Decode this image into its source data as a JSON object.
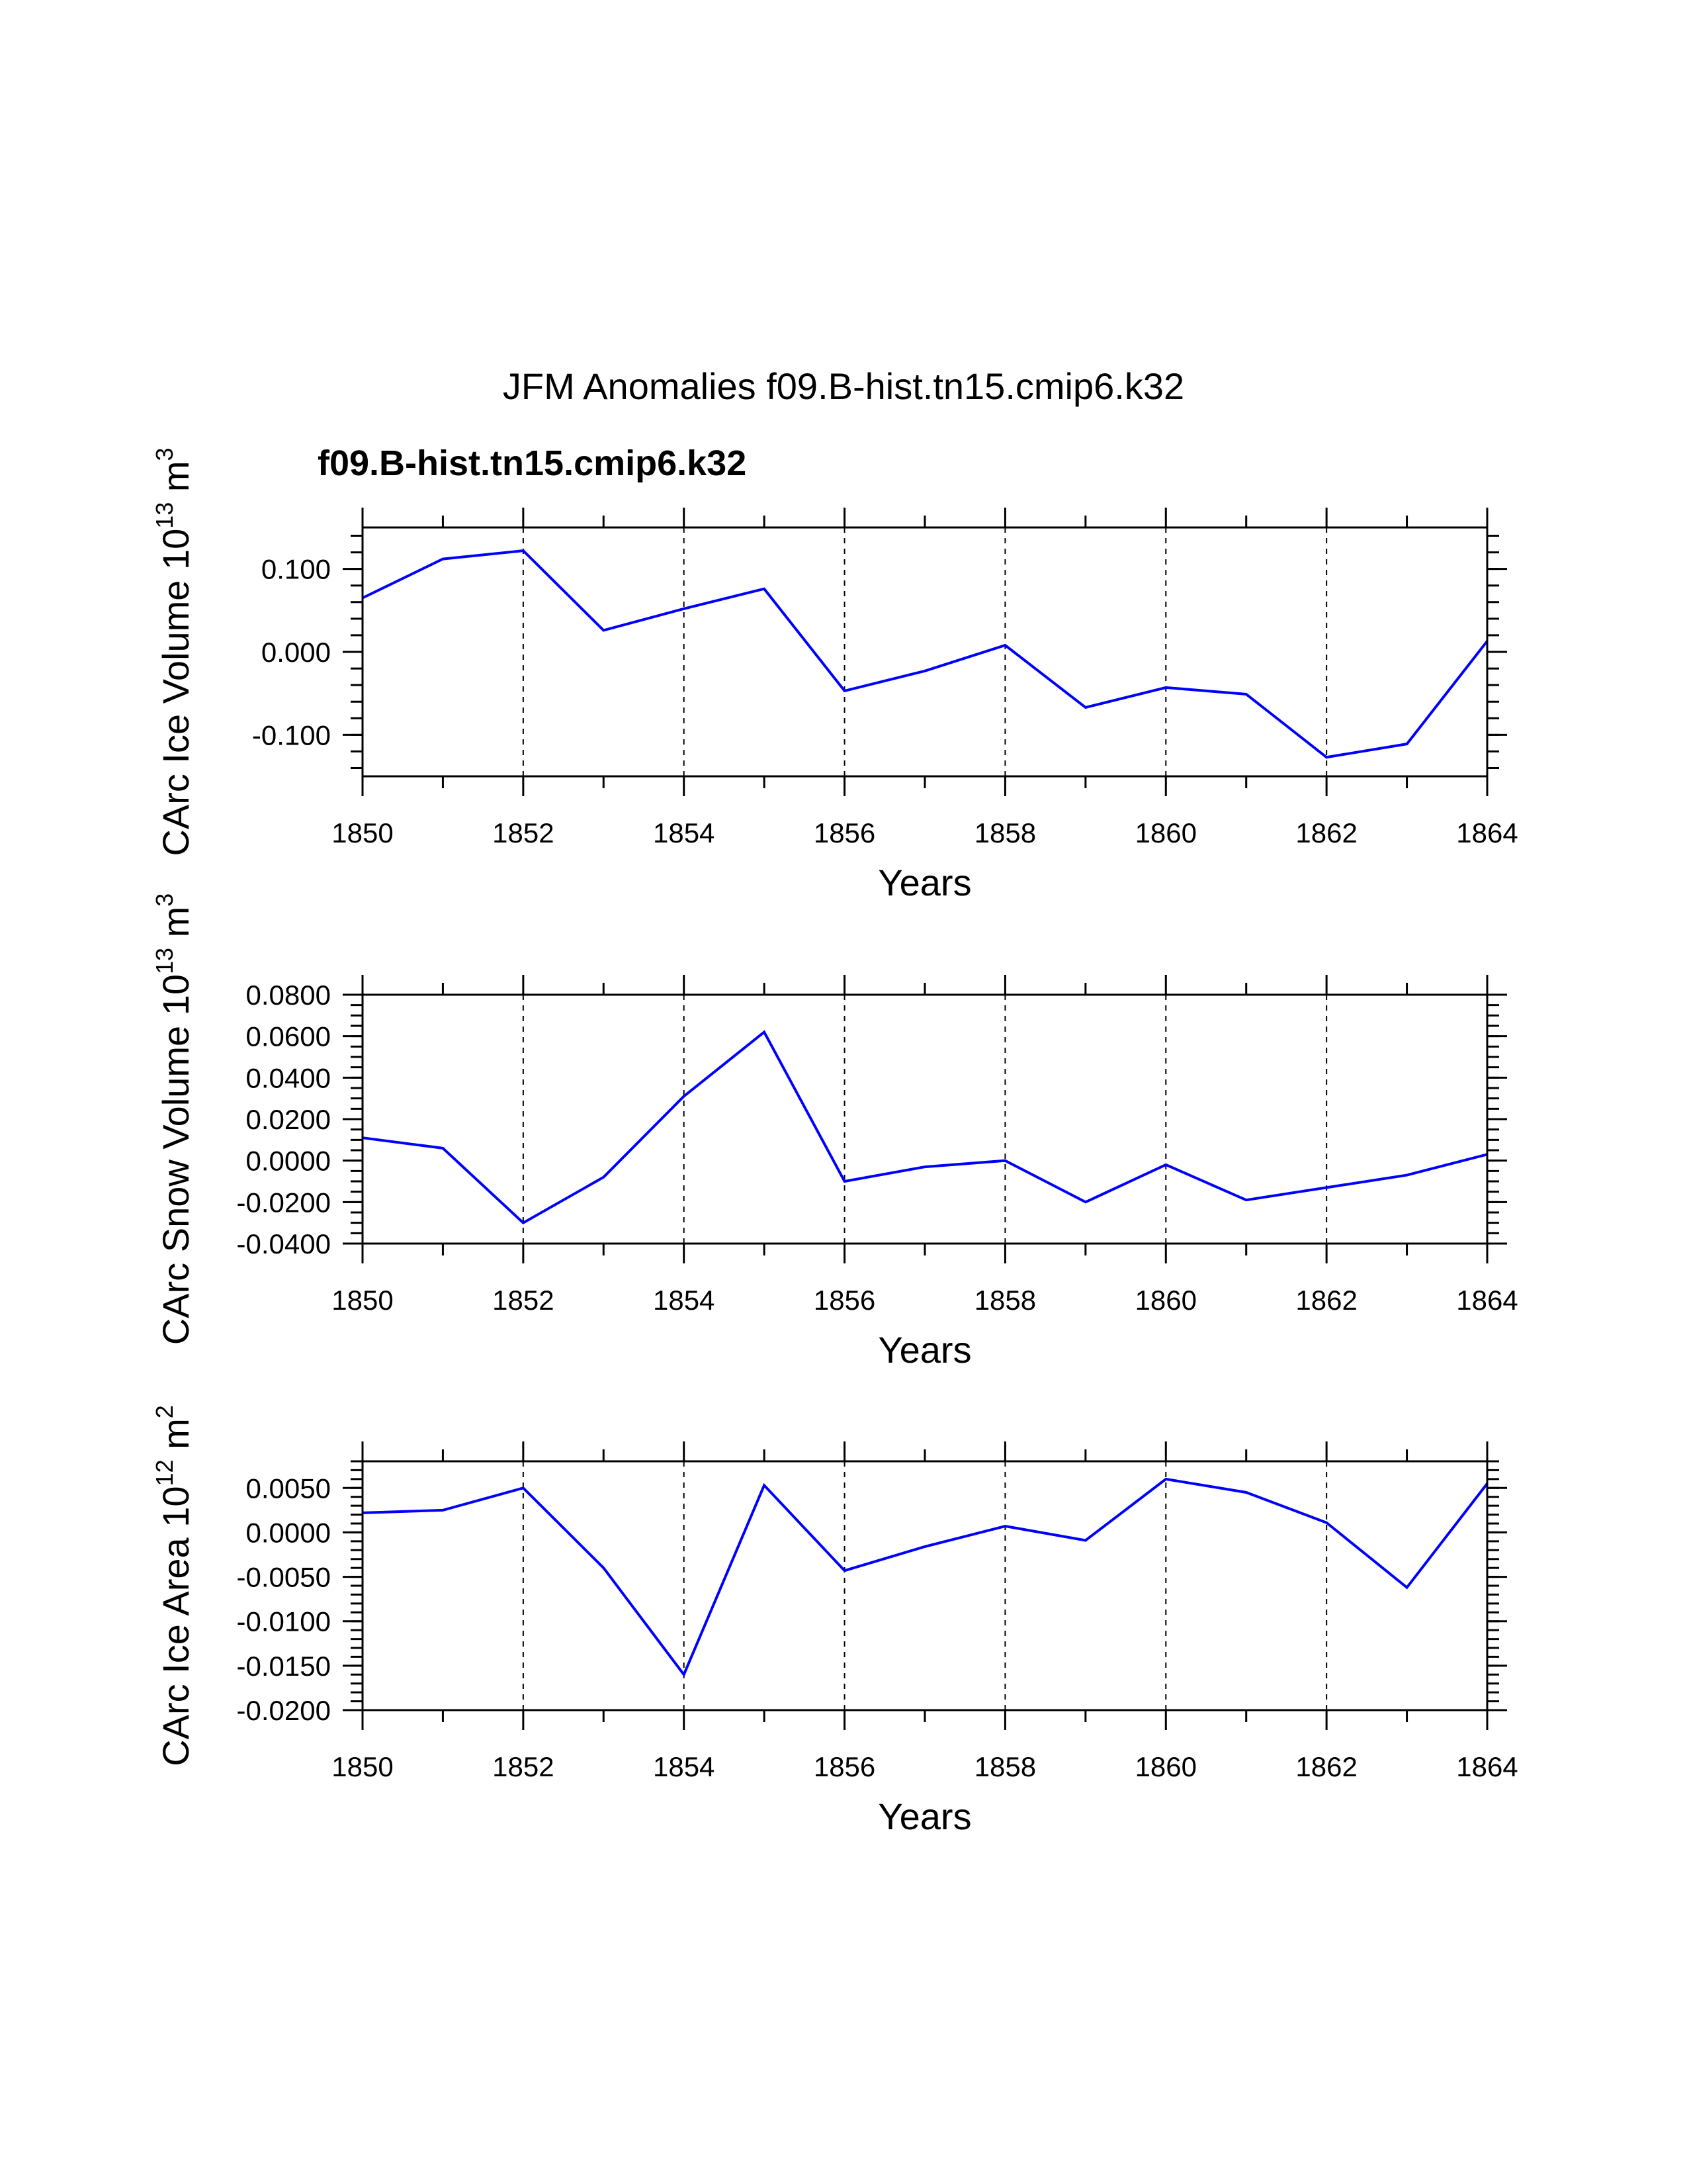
{
  "figure": {
    "main_title": "JFM Anomalies f09.B-hist.tn15.cmip6.k32",
    "case_label": "f09.B-hist.tn15.cmip6.k32",
    "case_color": "#0000ff",
    "line_color": "#0000ff",
    "grid_style": "dashed vertical lines at major x ticks"
  },
  "chart_data": [
    {
      "type": "line",
      "ylabel_main": "CArc Ice Volume 10",
      "ylabel_exp": "13",
      "ylabel_unit": " m",
      "ylabel_unit_exp": "3",
      "xlabel": "Years",
      "xlim": [
        1850,
        1864
      ],
      "ylim": [
        -0.15,
        0.15
      ],
      "xticks": [
        "1850",
        "1852",
        "1854",
        "1856",
        "1858",
        "1860",
        "1862",
        "1864"
      ],
      "ytick_values": [
        -0.1,
        0.0,
        0.1
      ],
      "yticks": [
        "-0.100",
        "0.000",
        "0.100"
      ],
      "y_minor_step": 0.02,
      "x": [
        1850,
        1851,
        1852,
        1853,
        1854,
        1855,
        1856,
        1857,
        1858,
        1859,
        1860,
        1861,
        1862,
        1863,
        1864
      ],
      "series": [
        {
          "name": "f09.B-hist.tn15.cmip6.k32",
          "values": [
            0.065,
            0.112,
            0.122,
            0.026,
            0.052,
            0.076,
            -0.047,
            -0.023,
            0.008,
            -0.067,
            -0.043,
            -0.051,
            -0.127,
            -0.111,
            0.013
          ]
        }
      ]
    },
    {
      "type": "line",
      "ylabel_main": "CArc Snow Volume 10",
      "ylabel_exp": "13",
      "ylabel_unit": " m",
      "ylabel_unit_exp": "3",
      "xlabel": "Years",
      "xlim": [
        1850,
        1864
      ],
      "ylim": [
        -0.04,
        0.08
      ],
      "xticks": [
        "1850",
        "1852",
        "1854",
        "1856",
        "1858",
        "1860",
        "1862",
        "1864"
      ],
      "ytick_values": [
        -0.04,
        -0.02,
        0.0,
        0.02,
        0.04,
        0.06,
        0.08
      ],
      "yticks": [
        "-0.0400",
        "-0.0200",
        "0.0000",
        "0.0200",
        "0.0400",
        "0.0600",
        "0.0800"
      ],
      "y_minor_step": 0.005,
      "x": [
        1850,
        1851,
        1852,
        1853,
        1854,
        1855,
        1856,
        1857,
        1858,
        1859,
        1860,
        1861,
        1862,
        1863,
        1864
      ],
      "series": [
        {
          "name": "f09.B-hist.tn15.cmip6.k32",
          "values": [
            0.011,
            0.006,
            -0.03,
            -0.008,
            0.031,
            0.062,
            -0.01,
            -0.003,
            0.0,
            -0.02,
            -0.002,
            -0.019,
            -0.013,
            -0.007,
            0.003
          ]
        }
      ]
    },
    {
      "type": "line",
      "ylabel_main": "CArc Ice Area 10",
      "ylabel_exp": "12",
      "ylabel_unit": " m",
      "ylabel_unit_exp": "2",
      "xlabel": "Years",
      "xlim": [
        1850,
        1864
      ],
      "ylim": [
        -0.02,
        0.008
      ],
      "xticks": [
        "1850",
        "1852",
        "1854",
        "1856",
        "1858",
        "1860",
        "1862",
        "1864"
      ],
      "ytick_values": [
        -0.02,
        -0.015,
        -0.01,
        -0.005,
        0.0,
        0.005
      ],
      "yticks": [
        "-0.0200",
        "-0.0150",
        "-0.0100",
        "-0.0050",
        "0.0000",
        "0.0050"
      ],
      "y_minor_step": 0.001,
      "x": [
        1850,
        1851,
        1852,
        1853,
        1854,
        1855,
        1856,
        1857,
        1858,
        1859,
        1860,
        1861,
        1862,
        1863,
        1864
      ],
      "series": [
        {
          "name": "f09.B-hist.tn15.cmip6.k32",
          "values": [
            0.0022,
            0.0025,
            0.005,
            -0.004,
            -0.016,
            0.0053,
            -0.0043,
            -0.0016,
            0.0007,
            -0.0009,
            0.006,
            0.0045,
            0.0011,
            -0.0062,
            0.0055
          ]
        }
      ]
    }
  ]
}
